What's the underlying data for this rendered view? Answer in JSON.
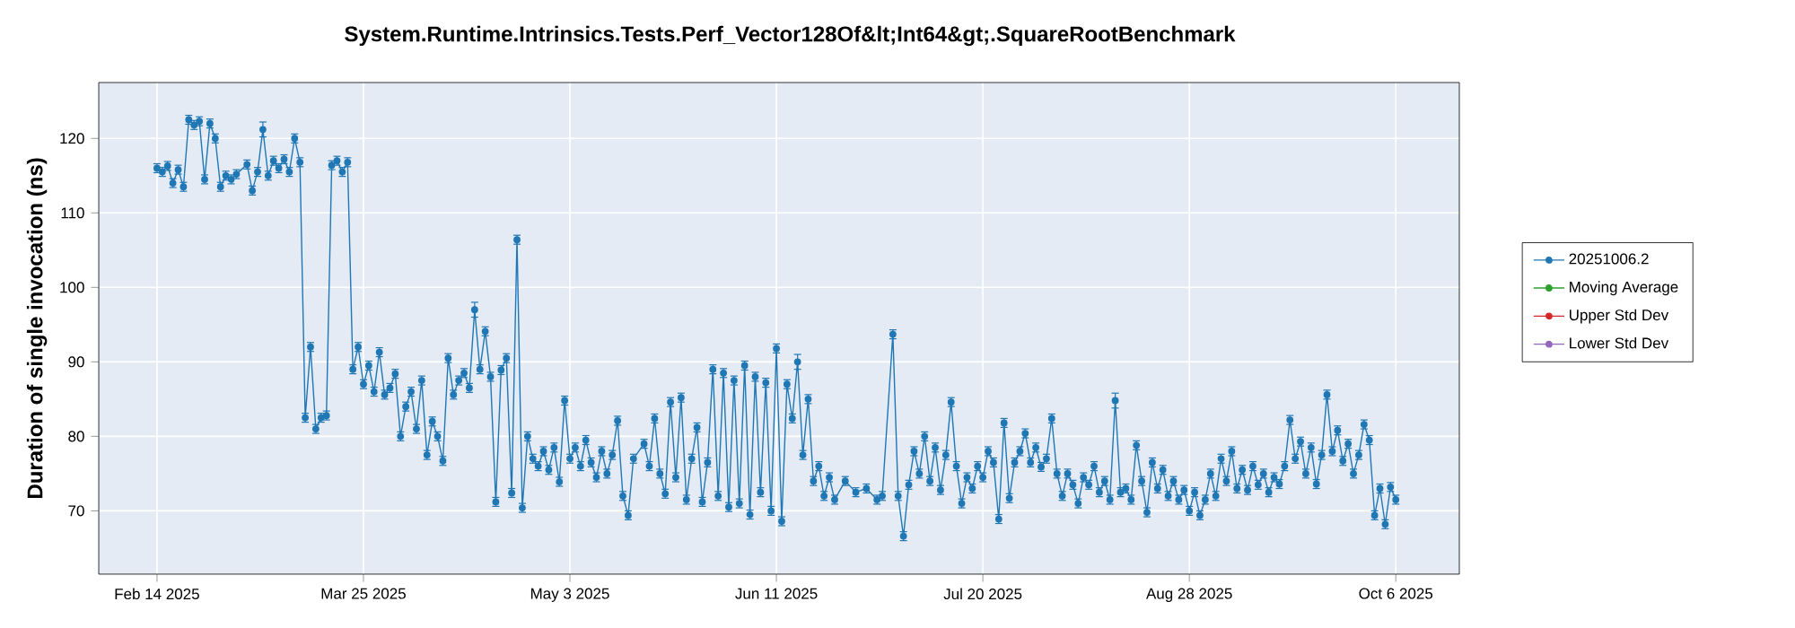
{
  "chart_data": {
    "type": "line",
    "title": "System.Runtime.Intrinsics.Tests.Perf_Vector128Of&lt;Int64&gt;.SquareRootBenchmark",
    "ylabel": "Duration of single invocation (ns)",
    "xlim": [
      "2025-02-03",
      "2025-10-18"
    ],
    "xticks": [
      {
        "value": "2025-02-14",
        "label": "Feb 14 2025"
      },
      {
        "value": "2025-03-25",
        "label": "Mar 25 2025"
      },
      {
        "value": "2025-05-03",
        "label": "May 3 2025"
      },
      {
        "value": "2025-06-11",
        "label": "Jun 11 2025"
      },
      {
        "value": "2025-07-20",
        "label": "Jul 20 2025"
      },
      {
        "value": "2025-08-28",
        "label": "Aug 28 2025"
      },
      {
        "value": "2025-10-06",
        "label": "Oct 6 2025"
      }
    ],
    "ylim": [
      61.5,
      127.5
    ],
    "yticks": [
      70,
      80,
      90,
      100,
      110,
      120
    ],
    "grid": true,
    "legend": "right",
    "marker": "circle",
    "line_style": "solid",
    "series": [
      {
        "name": "20251006.2",
        "color": "#1f77b4",
        "x": [
          "2025-02-14",
          "2025-02-15",
          "2025-02-16",
          "2025-02-17",
          "2025-02-18",
          "2025-02-19",
          "2025-02-20",
          "2025-02-21",
          "2025-02-22",
          "2025-02-23",
          "2025-02-24",
          "2025-02-25",
          "2025-02-26",
          "2025-02-27",
          "2025-02-28",
          "2025-03-01",
          "2025-03-03",
          "2025-03-04",
          "2025-03-05",
          "2025-03-06",
          "2025-03-07",
          "2025-03-08",
          "2025-03-09",
          "2025-03-10",
          "2025-03-11",
          "2025-03-12",
          "2025-03-13",
          "2025-03-14",
          "2025-03-15",
          "2025-03-16",
          "2025-03-17",
          "2025-03-18",
          "2025-03-19",
          "2025-03-20",
          "2025-03-21",
          "2025-03-22",
          "2025-03-23",
          "2025-03-24",
          "2025-03-25",
          "2025-03-26",
          "2025-03-27",
          "2025-03-28",
          "2025-03-29",
          "2025-03-30",
          "2025-03-31",
          "2025-04-01",
          "2025-04-02",
          "2025-04-03",
          "2025-04-04",
          "2025-04-05",
          "2025-04-06",
          "2025-04-07",
          "2025-04-08",
          "2025-04-09",
          "2025-04-10",
          "2025-04-11",
          "2025-04-12",
          "2025-04-13",
          "2025-04-14",
          "2025-04-15",
          "2025-04-16",
          "2025-04-17",
          "2025-04-18",
          "2025-04-19",
          "2025-04-20",
          "2025-04-21",
          "2025-04-22",
          "2025-04-23",
          "2025-04-24",
          "2025-04-25",
          "2025-04-26",
          "2025-04-27",
          "2025-04-28",
          "2025-04-29",
          "2025-04-30",
          "2025-05-01",
          "2025-05-02",
          "2025-05-03",
          "2025-05-04",
          "2025-05-05",
          "2025-05-06",
          "2025-05-07",
          "2025-05-08",
          "2025-05-09",
          "2025-05-10",
          "2025-05-11",
          "2025-05-12",
          "2025-05-13",
          "2025-05-14",
          "2025-05-15",
          "2025-05-17",
          "2025-05-18",
          "2025-05-19",
          "2025-05-20",
          "2025-05-21",
          "2025-05-22",
          "2025-05-23",
          "2025-05-24",
          "2025-05-25",
          "2025-05-26",
          "2025-05-27",
          "2025-05-28",
          "2025-05-29",
          "2025-05-30",
          "2025-05-31",
          "2025-06-01",
          "2025-06-02",
          "2025-06-03",
          "2025-06-04",
          "2025-06-05",
          "2025-06-06",
          "2025-06-07",
          "2025-06-08",
          "2025-06-09",
          "2025-06-10",
          "2025-06-11",
          "2025-06-12",
          "2025-06-13",
          "2025-06-14",
          "2025-06-15",
          "2025-06-16",
          "2025-06-17",
          "2025-06-18",
          "2025-06-19",
          "2025-06-20",
          "2025-06-21",
          "2025-06-22",
          "2025-06-24",
          "2025-06-26",
          "2025-06-28",
          "2025-06-30",
          "2025-07-01",
          "2025-07-03",
          "2025-07-04",
          "2025-07-05",
          "2025-07-06",
          "2025-07-07",
          "2025-07-08",
          "2025-07-09",
          "2025-07-10",
          "2025-07-11",
          "2025-07-12",
          "2025-07-13",
          "2025-07-14",
          "2025-07-15",
          "2025-07-16",
          "2025-07-17",
          "2025-07-18",
          "2025-07-19",
          "2025-07-20",
          "2025-07-21",
          "2025-07-22",
          "2025-07-23",
          "2025-07-24",
          "2025-07-25",
          "2025-07-26",
          "2025-07-27",
          "2025-07-28",
          "2025-07-29",
          "2025-07-30",
          "2025-07-31",
          "2025-08-01",
          "2025-08-02",
          "2025-08-03",
          "2025-08-04",
          "2025-08-05",
          "2025-08-06",
          "2025-08-07",
          "2025-08-08",
          "2025-08-09",
          "2025-08-10",
          "2025-08-11",
          "2025-08-12",
          "2025-08-13",
          "2025-08-14",
          "2025-08-15",
          "2025-08-16",
          "2025-08-17",
          "2025-08-18",
          "2025-08-19",
          "2025-08-20",
          "2025-08-21",
          "2025-08-22",
          "2025-08-23",
          "2025-08-24",
          "2025-08-25",
          "2025-08-26",
          "2025-08-27",
          "2025-08-28",
          "2025-08-29",
          "2025-08-30",
          "2025-08-31",
          "2025-09-01",
          "2025-09-02",
          "2025-09-03",
          "2025-09-04",
          "2025-09-05",
          "2025-09-06",
          "2025-09-07",
          "2025-09-08",
          "2025-09-09",
          "2025-09-10",
          "2025-09-11",
          "2025-09-12",
          "2025-09-13",
          "2025-09-14",
          "2025-09-15",
          "2025-09-16",
          "2025-09-17",
          "2025-09-18",
          "2025-09-19",
          "2025-09-20",
          "2025-09-21",
          "2025-09-22",
          "2025-09-23",
          "2025-09-24",
          "2025-09-25",
          "2025-09-26",
          "2025-09-27",
          "2025-09-28",
          "2025-09-29",
          "2025-09-30",
          "2025-10-01",
          "2025-10-02",
          "2025-10-03",
          "2025-10-04",
          "2025-10-05",
          "2025-10-06"
        ],
        "values": [
          116,
          115.5,
          116.3,
          114,
          115.8,
          113.5,
          122.5,
          121.8,
          122.3,
          114.5,
          122,
          120,
          113.5,
          115,
          114.5,
          115.2,
          116.5,
          113,
          115.5,
          121.2,
          115,
          117,
          116,
          117.2,
          115.5,
          120,
          116.8,
          82.5,
          92,
          81,
          82.5,
          82.8,
          116.4,
          117,
          115.5,
          116.8,
          89,
          92,
          87,
          89.5,
          86,
          91.3,
          85.6,
          86.5,
          88.4,
          80,
          84,
          86,
          81,
          87.5,
          77.5,
          82,
          80,
          76.7,
          90.5,
          85.6,
          87.5,
          88.5,
          86.5,
          97,
          89,
          94.1,
          88,
          71.2,
          88.9,
          90.5,
          72.4,
          106.4,
          70.4,
          80,
          77,
          76,
          78,
          75.5,
          78.5,
          73.9,
          84.8,
          77,
          78.5,
          76,
          79.5,
          76.5,
          74.5,
          78,
          75,
          77.5,
          82.1,
          72,
          69.4,
          77,
          79,
          76,
          82.4,
          75,
          72.3,
          84.6,
          74.5,
          85.2,
          71.5,
          77,
          81.2,
          71.2,
          76.5,
          89,
          72,
          88.5,
          70.5,
          87.5,
          71,
          89.5,
          69.5,
          88,
          72.5,
          87.2,
          70,
          91.8,
          68.6,
          87,
          82.4,
          90,
          77.5,
          85,
          74,
          76,
          72,
          74.5,
          71.5,
          74,
          72.5,
          73,
          71.5,
          72,
          93.7,
          72,
          66.6,
          73.5,
          78,
          75,
          80,
          74,
          78.5,
          72.8,
          77.5,
          84.6,
          76,
          71,
          74.5,
          73,
          76,
          74.5,
          78,
          76.5,
          68.9,
          81.8,
          71.7,
          76.5,
          78,
          80.4,
          76.5,
          78.5,
          75.9,
          77,
          82.4,
          75,
          72,
          75,
          73.5,
          71,
          74.5,
          73.5,
          76,
          72.5,
          74,
          71.5,
          84.8,
          72.5,
          73,
          71.5,
          78.8,
          74,
          69.8,
          76.5,
          73,
          75.5,
          72,
          74,
          71.5,
          72.8,
          70,
          72.5,
          69.4,
          71.5,
          75,
          72,
          77,
          74,
          78,
          73,
          75.5,
          72.8,
          76,
          73.5,
          75,
          72.5,
          74.5,
          73.6,
          76,
          82.2,
          77,
          79.3,
          75,
          78.5,
          73.6,
          77.5,
          85.6,
          78,
          80.8,
          76.7,
          79,
          75,
          77.5,
          81.6,
          79.5,
          69.4,
          73,
          68.2,
          73.2,
          71.5
        ],
        "errors": [
          0.6,
          0.6,
          0.6,
          0.6,
          0.6,
          0.6,
          0.6,
          0.6,
          0.6,
          0.6,
          0.6,
          0.6,
          0.6,
          0.6,
          0.6,
          0.6,
          0.6,
          0.6,
          0.6,
          1,
          0.6,
          0.6,
          0.6,
          0.6,
          0.6,
          0.6,
          0.6,
          0.6,
          0.6,
          0.6,
          0.6,
          0.6,
          0.6,
          0.6,
          0.6,
          0.6,
          0.6,
          0.6,
          0.6,
          0.6,
          0.6,
          0.6,
          0.6,
          0.6,
          0.6,
          0.6,
          0.6,
          0.6,
          0.6,
          0.6,
          0.6,
          0.6,
          0.6,
          0.6,
          0.6,
          0.6,
          0.6,
          0.6,
          0.6,
          1,
          0.6,
          0.6,
          0.6,
          0.6,
          0.6,
          0.6,
          0.6,
          0.6,
          0.6,
          0.6,
          0.6,
          0.6,
          0.6,
          0.6,
          0.6,
          0.6,
          0.6,
          0.6,
          0.6,
          0.6,
          0.6,
          0.6,
          0.6,
          0.6,
          0.6,
          0.6,
          0.6,
          0.6,
          0.6,
          0.6,
          0.6,
          0.6,
          0.6,
          0.6,
          0.6,
          0.6,
          0.6,
          0.6,
          0.6,
          0.6,
          0.6,
          0.6,
          0.6,
          0.6,
          0.6,
          0.6,
          0.6,
          0.6,
          0.6,
          0.6,
          0.6,
          0.6,
          0.6,
          0.6,
          0.6,
          0.6,
          0.6,
          0.6,
          0.6,
          1,
          0.6,
          0.6,
          0.6,
          0.6,
          0.6,
          0.6,
          0.6,
          0.6,
          0.6,
          0.6,
          0.6,
          0.6,
          0.6,
          0.6,
          0.6,
          0.6,
          0.6,
          0.6,
          0.6,
          0.6,
          0.6,
          0.6,
          0.6,
          0.6,
          0.6,
          0.6,
          0.6,
          0.6,
          0.6,
          0.6,
          0.6,
          0.6,
          0.6,
          0.6,
          0.6,
          0.6,
          0.6,
          0.6,
          0.6,
          0.6,
          0.6,
          0.6,
          0.6,
          0.6,
          0.6,
          0.6,
          0.6,
          0.6,
          0.6,
          0.6,
          0.6,
          0.6,
          0.6,
          0.6,
          1,
          0.6,
          0.6,
          0.6,
          0.6,
          0.6,
          0.6,
          0.6,
          0.6,
          0.6,
          0.6,
          0.6,
          0.6,
          0.6,
          0.6,
          0.6,
          0.6,
          0.6,
          0.6,
          0.6,
          0.6,
          0.6,
          0.6,
          0.6,
          0.6,
          0.6,
          0.6,
          0.6,
          0.6,
          0.6,
          0.6,
          0.6,
          0.6,
          0.6,
          0.6,
          0.6,
          0.6,
          0.6,
          0.6,
          0.6,
          0.6,
          0.6,
          0.6,
          0.6,
          0.6,
          0.6,
          0.6,
          0.6,
          0.6,
          0.6,
          0.6,
          0.6,
          0.6,
          0.6
        ]
      },
      {
        "name": "Moving Average",
        "color": "#2ca02c"
      },
      {
        "name": "Upper Std Dev",
        "color": "#d62728"
      },
      {
        "name": "Lower Std Dev",
        "color": "#9467bd"
      }
    ]
  }
}
